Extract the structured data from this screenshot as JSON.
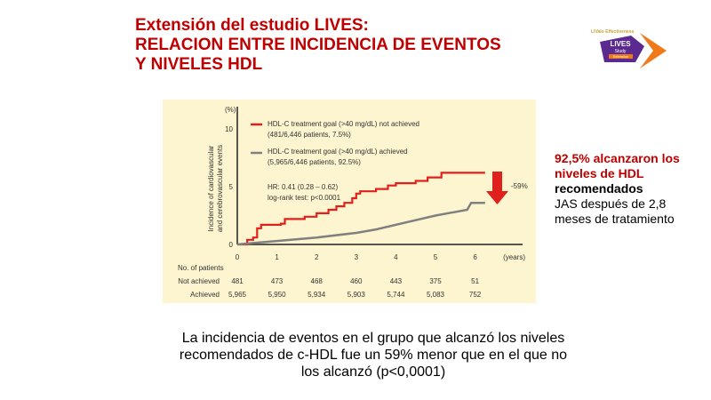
{
  "title": {
    "line1": "Extensión del estudio LIVES:",
    "line2": "RELACION ENTRE INCIDENCIA DE EVENTOS",
    "line3": "Y NIVELES HDL"
  },
  "logo": {
    "text": "LIVES Study Extension",
    "top_text": "LIValo Effectiveness and Safety Study"
  },
  "side": {
    "red": "92,5% alcanzaron los niveles de HDL",
    "bold": "recomendados",
    "normal": "JAS después de 2,8 meses de tratamiento"
  },
  "bottom": "La incidencia de eventos en el grupo que alcanzó los niveles recomendados de c-HDL fue un 59% menor que en el que no los alcanzó (p<0,0001)",
  "chart_data": {
    "type": "line",
    "ylabel": "Incidence of cardiovascular and cerebrovascular events",
    "yunit": "(%)",
    "xunit": "(years)",
    "ylim": [
      0,
      10
    ],
    "xlim": [
      0,
      6.5
    ],
    "yticks": [
      "0",
      "5",
      "10"
    ],
    "xticks": [
      "0",
      "1",
      "2",
      "3",
      "4",
      "5",
      "6"
    ],
    "colors": {
      "not_achieved": "#e0201c",
      "achieved": "#808080",
      "arrow": "#e0201c"
    },
    "series": [
      {
        "name": "HDL-C treatment goal (>40 mg/dL) not achieved",
        "detail": "(481/6,446 patients, 7.5%)",
        "step": true,
        "points": [
          [
            0,
            0
          ],
          [
            0.2,
            0
          ],
          [
            0.25,
            0.4
          ],
          [
            0.4,
            0.6
          ],
          [
            0.5,
            1.4
          ],
          [
            0.6,
            1.7
          ],
          [
            1.1,
            1.8
          ],
          [
            1.2,
            2.2
          ],
          [
            1.7,
            2.4
          ],
          [
            2.0,
            2.7
          ],
          [
            2.3,
            3.0
          ],
          [
            2.5,
            3.3
          ],
          [
            2.7,
            3.6
          ],
          [
            2.9,
            4.0
          ],
          [
            3.0,
            4.4
          ],
          [
            3.1,
            4.6
          ],
          [
            3.5,
            4.8
          ],
          [
            3.8,
            5.1
          ],
          [
            4.0,
            5.3
          ],
          [
            4.5,
            5.5
          ],
          [
            4.8,
            5.8
          ],
          [
            5.15,
            6.2
          ],
          [
            6.25,
            6.2
          ]
        ]
      },
      {
        "name": "HDL-C treatment goal (>40 mg/dL) achieved",
        "detail": "(5,965/6,446 patients, 92.5%)",
        "step": false,
        "points": [
          [
            0,
            0
          ],
          [
            0.5,
            0.15
          ],
          [
            1,
            0.3
          ],
          [
            2,
            0.6
          ],
          [
            3,
            1.0
          ],
          [
            3.5,
            1.3
          ],
          [
            4,
            1.7
          ],
          [
            4.5,
            2.1
          ],
          [
            5,
            2.5
          ],
          [
            5.8,
            3.0
          ],
          [
            5.9,
            3.6
          ],
          [
            6.25,
            3.6
          ]
        ]
      }
    ],
    "annotation": {
      "hr": "HR: 0.41 (0.28 – 0.62)",
      "logrank": "log-rank test: p<0.0001",
      "reduction": "-59%"
    },
    "risk_table": {
      "header": "No. of patients",
      "rows": [
        {
          "label": "Not achieved",
          "values": [
            "481",
            "473",
            "468",
            "460",
            "443",
            "375",
            "51"
          ]
        },
        {
          "label": "Achieved",
          "values": [
            "5,965",
            "5,950",
            "5,934",
            "5,903",
            "5,744",
            "5,083",
            "752"
          ]
        }
      ]
    }
  }
}
